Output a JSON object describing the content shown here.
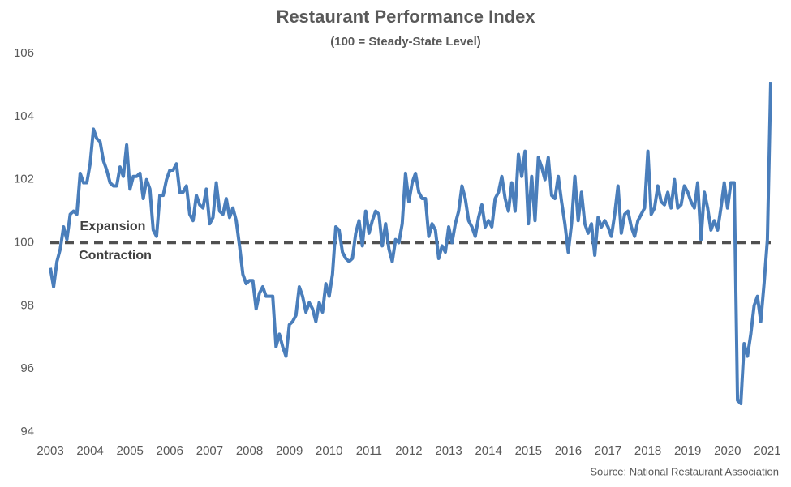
{
  "chart_data": {
    "type": "line",
    "title": "Restaurant Performance Index",
    "subtitle": "(100 = Steady-State Level)",
    "source": "Source: National Restaurant Association",
    "annotations": [
      "Expansion",
      "Contraction"
    ],
    "reference_line": 100,
    "categories": [
      "2003",
      null,
      null,
      null,
      null,
      null,
      null,
      null,
      null,
      null,
      null,
      null,
      "2004",
      null,
      null,
      null,
      null,
      null,
      null,
      null,
      null,
      null,
      null,
      null,
      "2005",
      null,
      null,
      null,
      null,
      null,
      null,
      null,
      null,
      null,
      null,
      null,
      "2006",
      null,
      null,
      null,
      null,
      null,
      null,
      null,
      null,
      null,
      null,
      null,
      "2007",
      null,
      null,
      null,
      null,
      null,
      null,
      null,
      null,
      null,
      null,
      null,
      "2008",
      null,
      null,
      null,
      null,
      null,
      null,
      null,
      null,
      null,
      null,
      null,
      "2009",
      null,
      null,
      null,
      null,
      null,
      null,
      null,
      null,
      null,
      null,
      null,
      "2010",
      null,
      null,
      null,
      null,
      null,
      null,
      null,
      null,
      null,
      null,
      null,
      "2011",
      null,
      null,
      null,
      null,
      null,
      null,
      null,
      null,
      null,
      null,
      null,
      "2012",
      null,
      null,
      null,
      null,
      null,
      null,
      null,
      null,
      null,
      null,
      null,
      "2013",
      null,
      null,
      null,
      null,
      null,
      null,
      null,
      null,
      null,
      null,
      null,
      "2014",
      null,
      null,
      null,
      null,
      null,
      null,
      null,
      null,
      null,
      null,
      null,
      "2015",
      null,
      null,
      null,
      null,
      null,
      null,
      null,
      null,
      null,
      null,
      null,
      "2016",
      null,
      null,
      null,
      null,
      null,
      null,
      null,
      null,
      null,
      null,
      null,
      "2017",
      null,
      null,
      null,
      null,
      null,
      null,
      null,
      null,
      null,
      null,
      null,
      "2018",
      null,
      null,
      null,
      null,
      null,
      null,
      null,
      null,
      null,
      null,
      null,
      "2019",
      null,
      null,
      null,
      null,
      null,
      null,
      null,
      null,
      null,
      null,
      null,
      "2020",
      null,
      null,
      null,
      null,
      null,
      null,
      null,
      null,
      null,
      null,
      null,
      "2021",
      null
    ],
    "series": [
      {
        "name": "Restaurant Performance Index",
        "color": "#4a7ebb",
        "values": [
          99.2,
          98.6,
          99.4,
          99.8,
          100.5,
          100.1,
          100.9,
          101.0,
          100.9,
          102.2,
          101.9,
          101.9,
          102.5,
          103.6,
          103.3,
          103.2,
          102.6,
          102.3,
          101.9,
          101.8,
          101.8,
          102.4,
          102.1,
          103.1,
          101.7,
          102.1,
          102.1,
          102.2,
          101.4,
          102.0,
          101.7,
          100.4,
          100.2,
          101.5,
          101.5,
          102.0,
          102.3,
          102.3,
          102.5,
          101.6,
          101.6,
          101.8,
          100.9,
          100.7,
          101.5,
          101.2,
          101.1,
          101.7,
          100.6,
          100.8,
          101.9,
          101.0,
          100.9,
          101.4,
          100.8,
          101.1,
          100.7,
          99.9,
          99.0,
          98.7,
          98.8,
          98.8,
          97.9,
          98.4,
          98.6,
          98.3,
          98.3,
          98.3,
          96.7,
          97.1,
          96.7,
          96.4,
          97.4,
          97.5,
          97.7,
          98.6,
          98.3,
          97.8,
          98.1,
          97.9,
          97.5,
          98.1,
          97.8,
          98.7,
          98.3,
          99.0,
          100.5,
          100.4,
          99.7,
          99.5,
          99.4,
          99.5,
          100.3,
          100.7,
          99.9,
          101.0,
          100.3,
          100.7,
          101.0,
          100.9,
          99.9,
          100.6,
          99.8,
          99.4,
          100.1,
          100.0,
          100.6,
          102.2,
          101.3,
          101.9,
          102.2,
          101.6,
          101.4,
          101.4,
          100.2,
          100.6,
          100.4,
          99.5,
          99.9,
          99.7,
          100.5,
          100.0,
          100.6,
          101.0,
          101.8,
          101.4,
          100.7,
          100.5,
          100.2,
          100.8,
          101.2,
          100.5,
          100.7,
          100.5,
          101.4,
          101.6,
          102.1,
          101.4,
          101.0,
          101.9,
          101.0,
          102.8,
          102.1,
          102.9,
          100.6,
          102.1,
          100.7,
          102.7,
          102.4,
          102.0,
          102.7,
          101.5,
          101.4,
          102.1,
          101.3,
          100.6,
          99.7,
          100.6,
          102.1,
          100.7,
          101.6,
          100.6,
          100.3,
          100.6,
          99.6,
          100.8,
          100.5,
          100.7,
          100.5,
          100.2,
          100.9,
          101.8,
          100.3,
          100.9,
          101.0,
          100.5,
          100.2,
          100.7,
          100.9,
          101.1,
          102.9,
          100.9,
          101.1,
          101.8,
          101.3,
          101.2,
          101.6,
          101.1,
          102.0,
          101.1,
          101.2,
          101.8,
          101.6,
          101.3,
          101.1,
          101.9,
          100.1,
          101.6,
          101.1,
          100.4,
          100.7,
          100.4,
          101.1,
          101.9,
          101.1,
          101.9,
          101.9,
          95.0,
          94.9,
          96.8,
          96.4,
          97.1,
          98.0,
          98.3,
          97.5,
          98.7,
          100.1,
          105.1
        ]
      }
    ],
    "ylim": [
      94,
      106
    ],
    "yticks": [
      94,
      96,
      98,
      100,
      102,
      104,
      106
    ],
    "grid": false
  }
}
